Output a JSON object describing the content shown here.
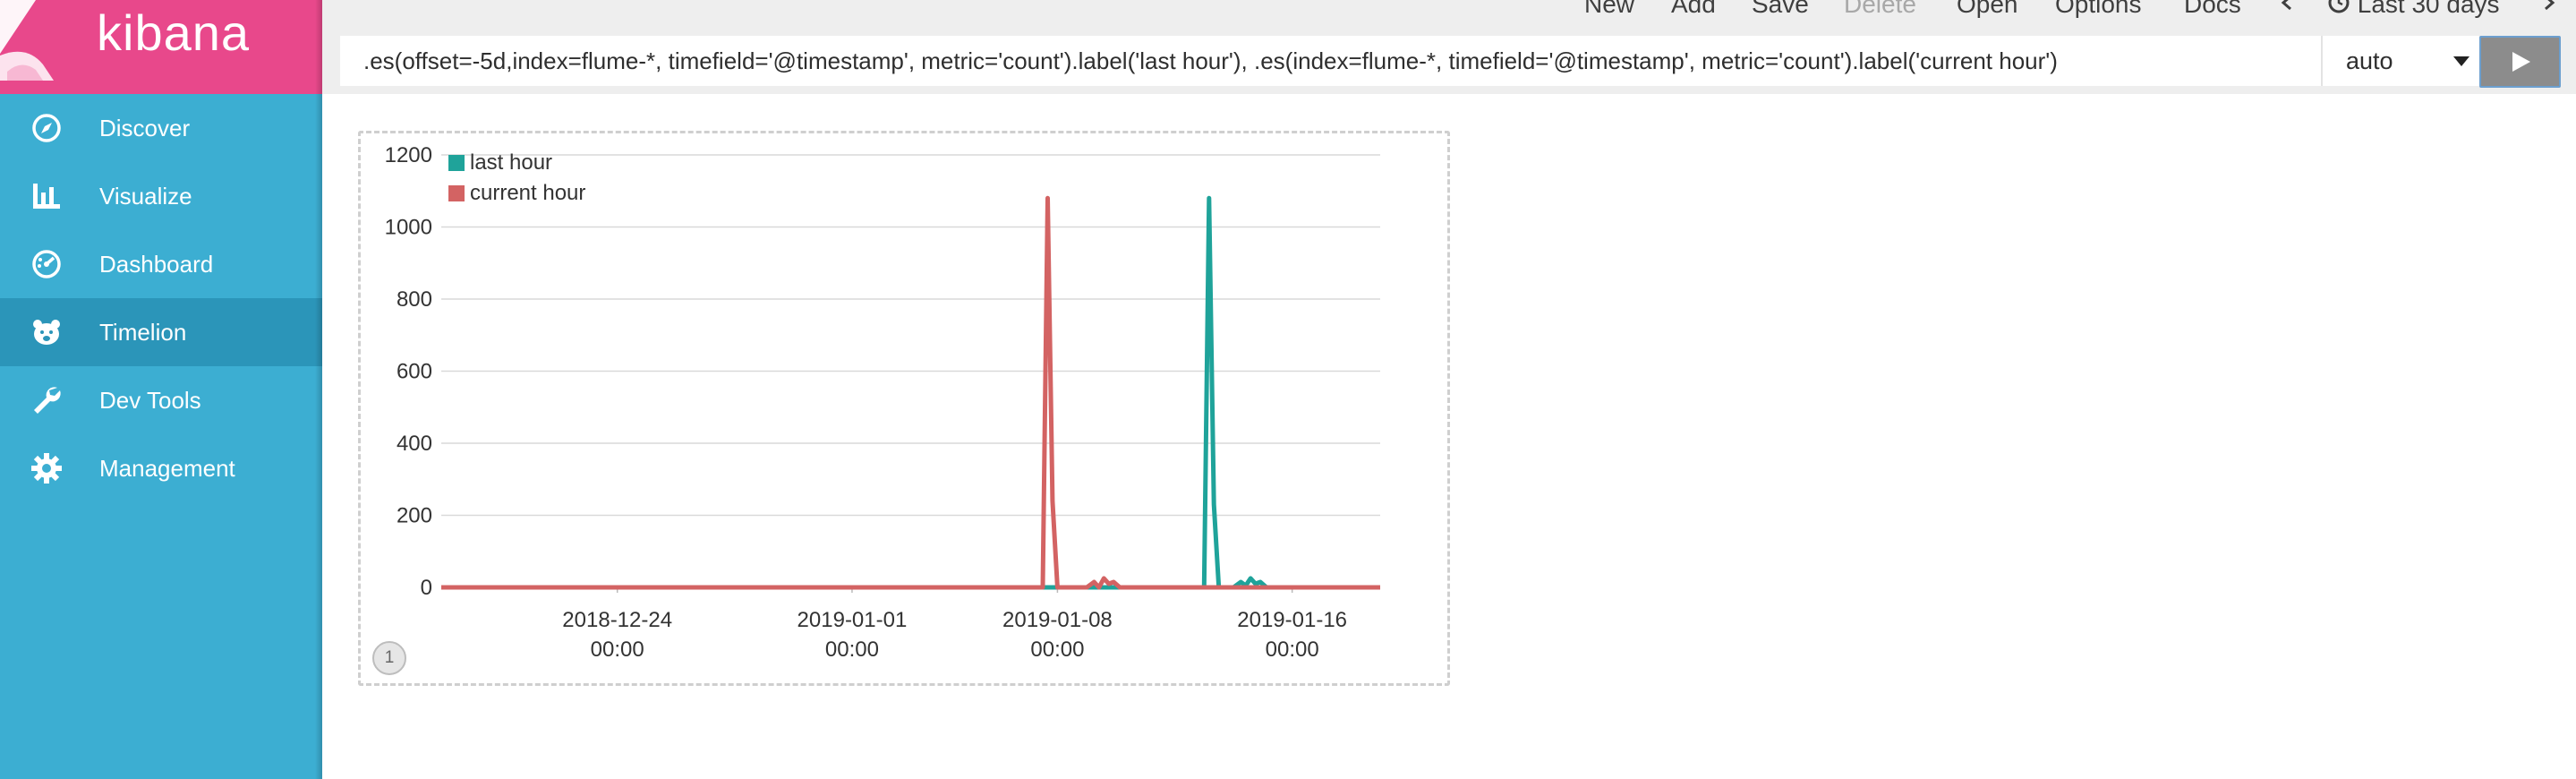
{
  "app": {
    "brand": "kibana",
    "colors": {
      "brand_pink": "#e8488b",
      "sidebar_blue": "#3caed2",
      "sidebar_active": "#2b95b9"
    }
  },
  "sidebar": {
    "items": [
      {
        "label": "Discover",
        "icon": "compass-icon",
        "active": false
      },
      {
        "label": "Visualize",
        "icon": "bar-chart-icon",
        "active": false
      },
      {
        "label": "Dashboard",
        "icon": "gauge-icon",
        "active": false
      },
      {
        "label": "Timelion",
        "icon": "bear-icon",
        "active": true
      },
      {
        "label": "Dev Tools",
        "icon": "wrench-icon",
        "active": false
      },
      {
        "label": "Management",
        "icon": "gear-icon",
        "active": false
      }
    ]
  },
  "topmenu": {
    "new": "New",
    "add": "Add",
    "save": "Save",
    "delete": "Delete",
    "open": "Open",
    "options": "Options",
    "docs": "Docs",
    "timerange": "Last 30 days"
  },
  "query": {
    "expression": ".es(offset=-5d,index=flume-*, timefield='@timestamp', metric='count').label('last hour'), .es(index=flume-*, timefield='@timestamp', metric='count').label('current hour')"
  },
  "interval": {
    "value": "auto"
  },
  "panel": {
    "page_number": "1"
  },
  "chart_data": {
    "type": "line",
    "title": "",
    "xlabel": "",
    "ylabel": "",
    "ylim": [
      0,
      1200
    ],
    "yticks": [
      "0",
      "200",
      "400",
      "600",
      "800",
      "1000",
      "1200"
    ],
    "xlim": [
      "2018-12-18",
      "2019-01-19"
    ],
    "xticks": [
      {
        "date": "2018-12-24",
        "line1": "2018-12-24",
        "line2": "00:00"
      },
      {
        "date": "2019-01-01",
        "line1": "2019-01-01",
        "line2": "00:00"
      },
      {
        "date": "2019-01-08",
        "line1": "2019-01-08",
        "line2": "00:00"
      },
      {
        "date": "2019-01-16",
        "line1": "2019-01-16",
        "line2": "00:00"
      }
    ],
    "grid": true,
    "legend_position": "top-left",
    "series": [
      {
        "name": "last hour",
        "color": "#1fa39a",
        "points": [
          [
            "2018-12-18",
            0
          ],
          [
            "2019-01-08",
            0
          ],
          [
            "2019-01-08 12:00",
            0
          ],
          [
            "2019-01-13",
            0
          ],
          [
            "2019-01-13 04:00",
            1080
          ],
          [
            "2019-01-13 08:00",
            230
          ],
          [
            "2019-01-13 12:00",
            0
          ],
          [
            "2019-01-14",
            0
          ],
          [
            "2019-01-14 06:00",
            15
          ],
          [
            "2019-01-14 10:00",
            5
          ],
          [
            "2019-01-14 14:00",
            25
          ],
          [
            "2019-01-14 18:00",
            10
          ],
          [
            "2019-01-14 22:00",
            15
          ],
          [
            "2019-01-15 03:00",
            0
          ],
          [
            "2019-01-19",
            0
          ]
        ]
      },
      {
        "name": "current hour",
        "color": "#d36363",
        "points": [
          [
            "2018-12-18",
            0
          ],
          [
            "2019-01-07 12:00",
            0
          ],
          [
            "2019-01-07 16:00",
            1080
          ],
          [
            "2019-01-07 20:00",
            240
          ],
          [
            "2019-01-08 00:00",
            0
          ],
          [
            "2019-01-09",
            0
          ],
          [
            "2019-01-09 06:00",
            15
          ],
          [
            "2019-01-09 10:00",
            0
          ],
          [
            "2019-01-09 14:00",
            25
          ],
          [
            "2019-01-09 18:00",
            10
          ],
          [
            "2019-01-09 22:00",
            15
          ],
          [
            "2019-01-10 03:00",
            0
          ],
          [
            "2019-01-19",
            0
          ]
        ]
      }
    ]
  }
}
